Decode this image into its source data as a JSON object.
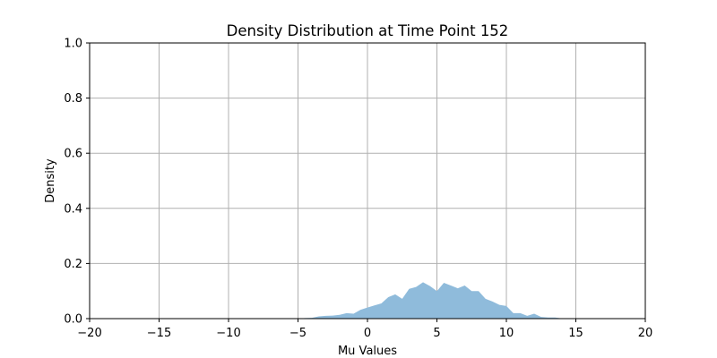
{
  "chart_data": {
    "type": "area",
    "title": "Density Distribution at Time Point 152",
    "xlabel": "Mu Values",
    "ylabel": "Density",
    "xlim": [
      -20,
      20
    ],
    "ylim": [
      0,
      1
    ],
    "x_ticks": [
      "−20",
      "−15",
      "−10",
      "−5",
      "0",
      "5",
      "10",
      "15",
      "20"
    ],
    "y_ticks": [
      "0.0",
      "0.2",
      "0.4",
      "0.6",
      "0.8",
      "1.0"
    ],
    "grid": true,
    "fill_color": "#8fbbdb",
    "series": [
      {
        "x": [
          -20,
          -5,
          -4.5,
          -4,
          -3.5,
          -3,
          -2.5,
          -2,
          -1.5,
          -1,
          -0.5,
          0,
          0.5,
          1,
          1.5,
          2,
          2.5,
          3,
          3.5,
          4,
          4.5,
          5,
          5.5,
          6,
          6.5,
          7,
          7.5,
          8,
          8.5,
          9,
          9.5,
          10,
          10.5,
          11,
          11.5,
          12,
          12.5,
          13,
          13.5,
          14,
          20
        ],
        "y": [
          0,
          0,
          0.002,
          0.003,
          0.008,
          0.01,
          0.011,
          0.014,
          0.02,
          0.018,
          0.032,
          0.04,
          0.048,
          0.055,
          0.078,
          0.088,
          0.072,
          0.108,
          0.115,
          0.132,
          0.118,
          0.1,
          0.13,
          0.12,
          0.11,
          0.12,
          0.1,
          0.1,
          0.072,
          0.062,
          0.05,
          0.046,
          0.02,
          0.02,
          0.01,
          0.018,
          0.006,
          0.004,
          0.004,
          0.001,
          0
        ]
      }
    ]
  }
}
